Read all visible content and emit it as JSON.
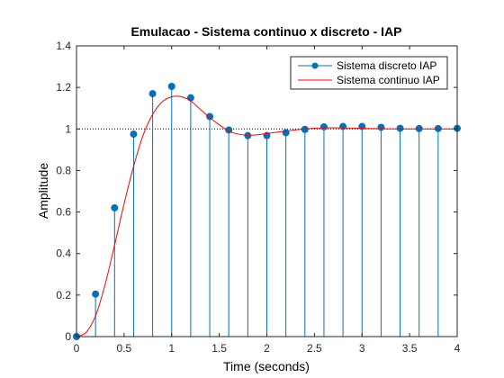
{
  "chart_data": {
    "type": "line",
    "title": "Emulacao - Sistema continuo x discreto - IAP",
    "xlabel": "Time (seconds)",
    "ylabel": "Amplitude",
    "xlim": [
      0,
      4
    ],
    "ylim": [
      0,
      1.4
    ],
    "xticks": [
      0,
      0.5,
      1,
      1.5,
      2,
      2.5,
      3,
      3.5,
      4
    ],
    "yticks": [
      0,
      0.2,
      0.4,
      0.6,
      0.8,
      1,
      1.2,
      1.4
    ],
    "xtick_labels": [
      "0",
      "0.5",
      "1",
      "1.5",
      "2",
      "2.5",
      "3",
      "3.5",
      "4"
    ],
    "ytick_labels": [
      "0",
      "0.2",
      "0.4",
      "0.6",
      "0.8",
      "1",
      "1.2",
      "1.4"
    ],
    "reference_line": {
      "y": 1,
      "style": "dotted",
      "color": "#000000"
    },
    "legend_position": "top-right",
    "grid": false,
    "series": [
      {
        "name": "Sistema discreto IAP",
        "style": "stem",
        "color": "#0072BD",
        "x": [
          0,
          0.2,
          0.4,
          0.6,
          0.8,
          1.0,
          1.2,
          1.4,
          1.6,
          1.8,
          2.0,
          2.2,
          2.4,
          2.6,
          2.8,
          3.0,
          3.2,
          3.4,
          3.6,
          3.8,
          4.0
        ],
        "y": [
          0,
          0.205,
          0.62,
          0.975,
          1.17,
          1.205,
          1.15,
          1.06,
          0.995,
          0.968,
          0.968,
          0.982,
          0.998,
          1.01,
          1.012,
          1.012,
          1.008,
          1.003,
          1.002,
          1.002,
          1.003
        ]
      },
      {
        "name": "Sistema continuo IAP",
        "style": "line",
        "color": "#FF0000",
        "x": [
          0,
          0.1,
          0.2,
          0.3,
          0.4,
          0.5,
          0.6,
          0.7,
          0.8,
          0.9,
          1.0,
          1.1,
          1.2,
          1.3,
          1.4,
          1.5,
          1.6,
          1.7,
          1.8,
          1.9,
          2.0,
          2.2,
          2.4,
          2.6,
          2.8,
          3.0,
          3.2,
          3.4,
          3.6,
          3.8,
          4.0
        ],
        "y": [
          0,
          0.02,
          0.1,
          0.25,
          0.44,
          0.64,
          0.82,
          0.97,
          1.07,
          1.13,
          1.155,
          1.155,
          1.135,
          1.095,
          1.055,
          1.02,
          0.99,
          0.975,
          0.97,
          0.972,
          0.978,
          0.99,
          1.0,
          1.005,
          1.005,
          1.003,
          1.001,
          1.0,
          1.0,
          1.0,
          1.0
        ]
      }
    ]
  }
}
